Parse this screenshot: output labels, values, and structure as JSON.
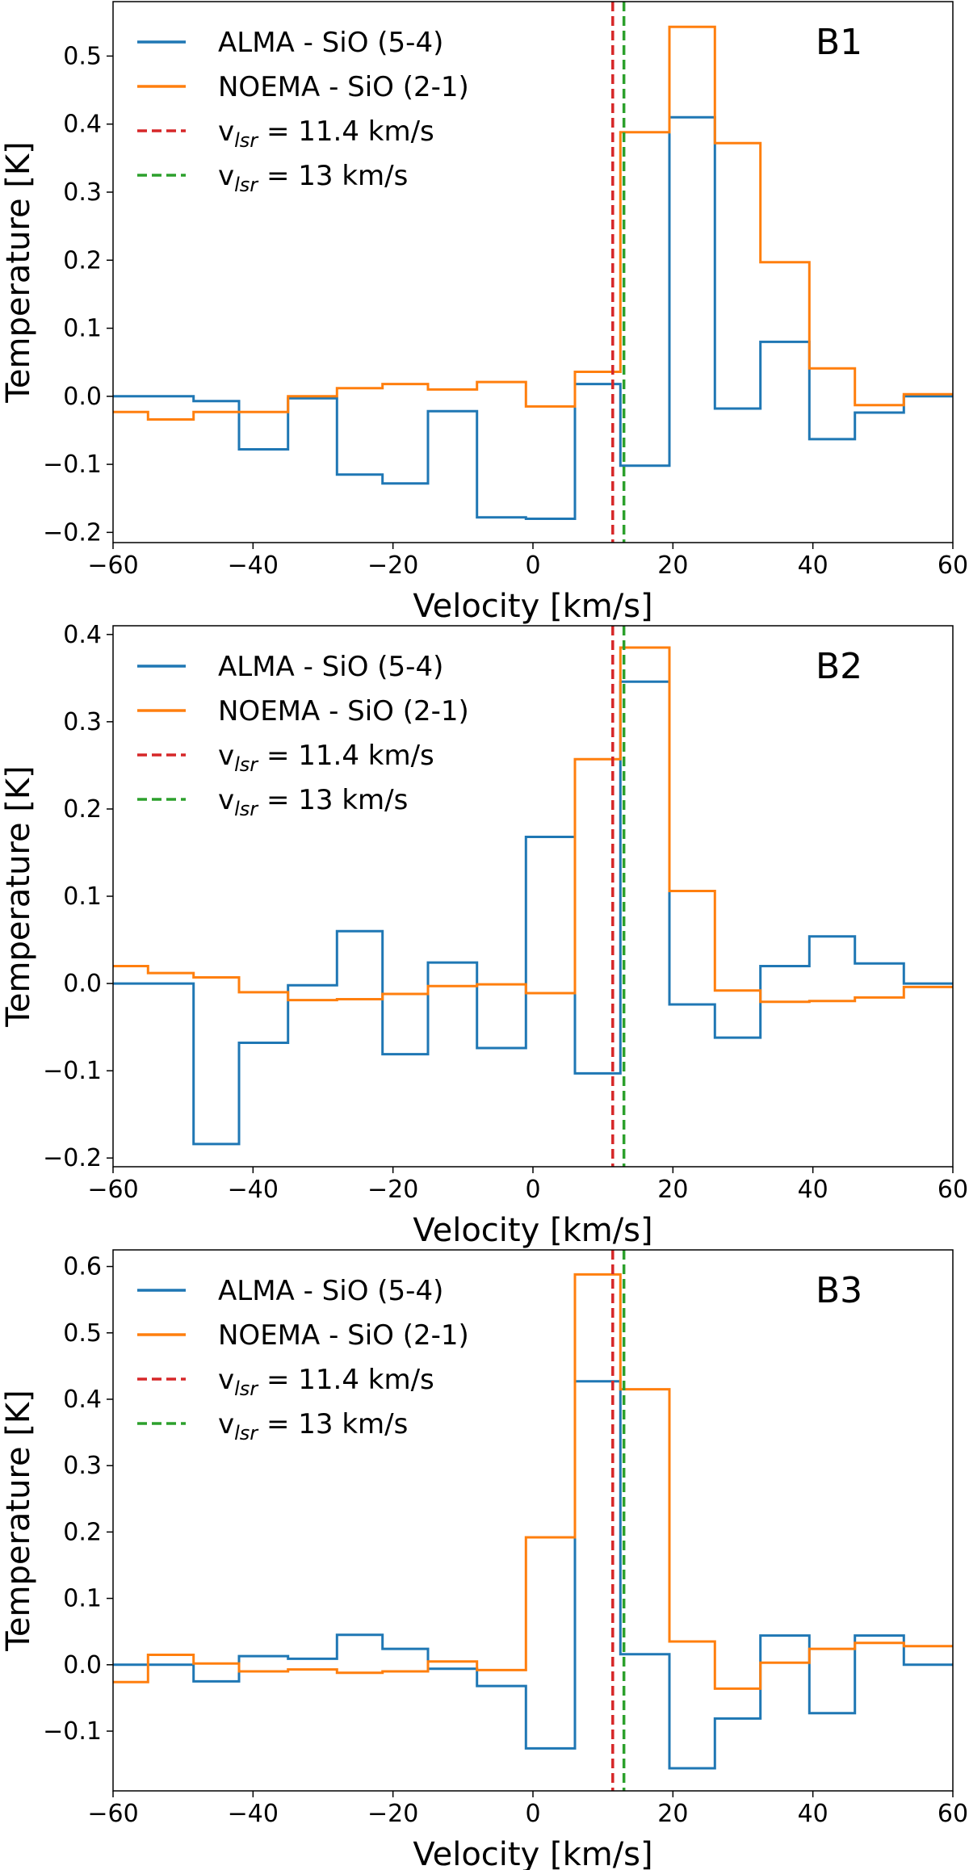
{
  "colors": {
    "alma": "#1f77b4",
    "noema": "#ff7f0e",
    "vlsr1": "#d62728",
    "vlsr2": "#2ca02c",
    "frame": "#000000"
  },
  "legend": [
    {
      "label": "ALMA - SiO (5-4)",
      "style": "solid",
      "color": "#1f77b4"
    },
    {
      "label": "NOEMA - SiO (2-1)",
      "style": "solid",
      "color": "#ff7f0e"
    },
    {
      "label_prefix": "v",
      "label_sub": "lsr",
      "label_suffix": " = 11.4 km/s",
      "style": "dashed",
      "color": "#d62728"
    },
    {
      "label_prefix": "v",
      "label_sub": "lsr",
      "label_suffix": " = 13 km/s",
      "style": "dashed",
      "color": "#2ca02c"
    }
  ],
  "chart_data": [
    {
      "type": "line",
      "title": "B1",
      "xlabel": "Velocity [km/s]",
      "ylabel": "Temperature [K]",
      "xlim": [
        -60,
        60
      ],
      "ylim": [
        -0.215,
        0.58
      ],
      "xticks": [
        -60,
        -40,
        -20,
        0,
        20,
        40,
        60
      ],
      "yticks": [
        -0.2,
        -0.1,
        0.0,
        0.1,
        0.2,
        0.3,
        0.4,
        0.5
      ],
      "legend_position": "top-left",
      "vlines": [
        11.4,
        13
      ],
      "edges": [
        -60,
        -55,
        -48.5,
        -42,
        -35,
        -28,
        -21.5,
        -15,
        -8,
        -1,
        6,
        12.5,
        19.5,
        26,
        32.5,
        39.5,
        46,
        53,
        60
      ],
      "series": [
        {
          "name": "ALMA - SiO (5-4)",
          "values": [
            0.0,
            0.0,
            -0.007,
            -0.078,
            -0.003,
            -0.115,
            -0.128,
            -0.022,
            -0.178,
            -0.18,
            0.018,
            -0.102,
            0.41,
            -0.018,
            0.08,
            -0.063,
            -0.024,
            0.0
          ]
        },
        {
          "name": "NOEMA - SiO (2-1)",
          "values": [
            -0.023,
            -0.034,
            -0.023,
            -0.023,
            0.0,
            0.012,
            0.018,
            0.01,
            0.021,
            -0.015,
            0.036,
            0.388,
            0.543,
            0.372,
            0.197,
            0.041,
            -0.013,
            0.003
          ]
        }
      ]
    },
    {
      "type": "line",
      "title": "B2",
      "xlabel": "Velocity [km/s]",
      "ylabel": "Temperature [K]",
      "xlim": [
        -60,
        60
      ],
      "ylim": [
        -0.21,
        0.41
      ],
      "xticks": [
        -60,
        -40,
        -20,
        0,
        20,
        40,
        60
      ],
      "yticks": [
        -0.2,
        -0.1,
        0.0,
        0.1,
        0.2,
        0.3,
        0.4
      ],
      "legend_position": "top-left",
      "vlines": [
        11.4,
        13
      ],
      "edges": [
        -60,
        -55,
        -48.5,
        -42,
        -35,
        -28,
        -21.5,
        -15,
        -8,
        -1,
        6,
        12.5,
        19.5,
        26,
        32.5,
        39.5,
        46,
        53,
        60
      ],
      "series": [
        {
          "name": "ALMA - SiO (5-4)",
          "values": [
            0.0,
            0.0,
            -0.184,
            -0.068,
            -0.002,
            0.06,
            -0.081,
            0.024,
            -0.074,
            0.168,
            -0.103,
            0.346,
            -0.024,
            -0.062,
            0.02,
            0.054,
            0.023,
            0.0
          ]
        },
        {
          "name": "NOEMA - SiO (2-1)",
          "values": [
            0.02,
            0.012,
            0.007,
            -0.01,
            -0.019,
            -0.018,
            -0.012,
            -0.003,
            -0.001,
            -0.011,
            0.257,
            0.385,
            0.106,
            -0.008,
            -0.021,
            -0.02,
            -0.016,
            -0.004
          ]
        }
      ]
    },
    {
      "type": "line",
      "title": "B3",
      "xlabel": "Velocity [km/s]",
      "ylabel": "Temperature [K]",
      "xlim": [
        -60,
        60
      ],
      "ylim": [
        -0.19,
        0.625
      ],
      "xticks": [
        -60,
        -40,
        -20,
        0,
        20,
        40,
        60
      ],
      "yticks": [
        -0.1,
        0.0,
        0.1,
        0.2,
        0.3,
        0.4,
        0.5,
        0.6
      ],
      "legend_position": "top-left",
      "vlines": [
        11.4,
        13
      ],
      "edges": [
        -60,
        -55,
        -48.5,
        -42,
        -35,
        -28,
        -21.5,
        -15,
        -8,
        -1,
        6,
        12.5,
        19.5,
        26,
        32.5,
        39.5,
        46,
        53,
        60
      ],
      "series": [
        {
          "name": "ALMA - SiO (5-4)",
          "values": [
            0.0,
            0.0,
            -0.025,
            0.013,
            0.009,
            0.045,
            0.024,
            -0.006,
            -0.032,
            -0.126,
            0.427,
            0.016,
            -0.156,
            -0.081,
            0.044,
            -0.073,
            0.044,
            0.0
          ]
        },
        {
          "name": "NOEMA - SiO (2-1)",
          "values": [
            -0.026,
            0.015,
            0.002,
            -0.01,
            -0.007,
            -0.012,
            -0.01,
            0.005,
            -0.008,
            0.192,
            0.588,
            0.415,
            0.035,
            -0.036,
            0.003,
            0.024,
            0.033,
            0.028
          ]
        }
      ]
    }
  ]
}
